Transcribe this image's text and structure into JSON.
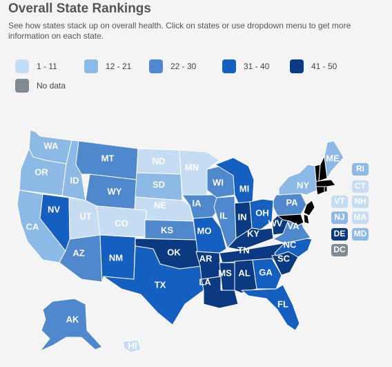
{
  "header": {
    "title": "Overall State Rankings",
    "subtitle": "See how states stack up on overall health. Click on states or use dropdown menu to get more information on each state."
  },
  "legend": [
    {
      "label": "1 - 11",
      "color": "#c6dcf2"
    },
    {
      "label": "12 - 21",
      "color": "#8cb9e6"
    },
    {
      "label": "22 - 30",
      "color": "#4f88cc"
    },
    {
      "label": "31 - 40",
      "color": "#155fc0"
    },
    {
      "label": "41 - 50",
      "color": "#0b3a82"
    },
    {
      "label": "No data",
      "color": "#818a91"
    }
  ],
  "states": {
    "WA": {
      "label": "WA",
      "tier": 1
    },
    "OR": {
      "label": "OR",
      "tier": 1
    },
    "CA": {
      "label": "CA",
      "tier": 1
    },
    "ID": {
      "label": "ID",
      "tier": 1
    },
    "NV": {
      "label": "NV",
      "tier": 3
    },
    "UT": {
      "label": "UT",
      "tier": 0
    },
    "AZ": {
      "label": "AZ",
      "tier": 2
    },
    "MT": {
      "label": "MT",
      "tier": 2
    },
    "WY": {
      "label": "WY",
      "tier": 2
    },
    "CO": {
      "label": "CO",
      "tier": 0
    },
    "NM": {
      "label": "NM",
      "tier": 3
    },
    "ND": {
      "label": "ND",
      "tier": 0
    },
    "SD": {
      "label": "SD",
      "tier": 1
    },
    "NE": {
      "label": "NE",
      "tier": 0
    },
    "KS": {
      "label": "KS",
      "tier": 2
    },
    "OK": {
      "label": "OK",
      "tier": 4
    },
    "TX": {
      "label": "TX",
      "tier": 3
    },
    "MN": {
      "label": "MN",
      "tier": 0
    },
    "IA": {
      "label": "IA",
      "tier": 2
    },
    "MO": {
      "label": "MO",
      "tier": 3
    },
    "AR": {
      "label": "AR",
      "tier": 4
    },
    "LA": {
      "label": "LA",
      "tier": 4
    },
    "WI": {
      "label": "WI",
      "tier": 2
    },
    "IL": {
      "label": "IL",
      "tier": 2
    },
    "MI": {
      "label": "MI",
      "tier": 3
    },
    "IN": {
      "label": "IN",
      "tier": 4
    },
    "OH": {
      "label": "OH",
      "tier": 3
    },
    "KY": {
      "label": "KY",
      "tier": 4
    },
    "TN": {
      "label": "TN",
      "tier": 4
    },
    "MS": {
      "label": "MS",
      "tier": 4
    },
    "AL": {
      "label": "AL",
      "tier": 4
    },
    "GA": {
      "label": "GA",
      "tier": 3
    },
    "FL": {
      "label": "FL",
      "tier": 3
    },
    "SC": {
      "label": "SC",
      "tier": 4
    },
    "NC": {
      "label": "NC",
      "tier": 3
    },
    "VA": {
      "label": "VA",
      "tier": 2
    },
    "WV": {
      "label": "WV",
      "tier": 4
    },
    "PA": {
      "label": "PA",
      "tier": 2
    },
    "NY": {
      "label": "NY",
      "tier": 1
    },
    "ME": {
      "label": "ME",
      "tier": 1
    },
    "AK": {
      "label": "AK",
      "tier": 2
    },
    "HI": {
      "label": "HI",
      "tier": 0
    }
  },
  "small_states": [
    {
      "label": "RI",
      "tier": 1
    },
    {
      "label": "CT",
      "tier": 0
    },
    {
      "label": "VT",
      "tier": 0
    },
    {
      "label": "NH",
      "tier": 0
    },
    {
      "label": "NJ",
      "tier": 1
    },
    {
      "label": "MA",
      "tier": 0
    },
    {
      "label": "DE",
      "tier": 4
    },
    {
      "label": "MD",
      "tier": 1
    },
    {
      "label": "DC",
      "tier": 5
    }
  ]
}
